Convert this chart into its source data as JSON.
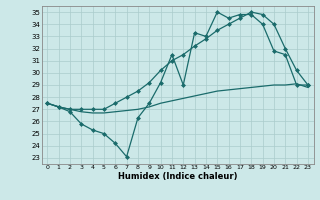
{
  "xlabel": "Humidex (Indice chaleur)",
  "ylabel": "",
  "xlim": [
    -0.5,
    23.5
  ],
  "ylim": [
    22.5,
    35.5
  ],
  "xticks": [
    0,
    1,
    2,
    3,
    4,
    5,
    6,
    7,
    8,
    9,
    10,
    11,
    12,
    13,
    14,
    15,
    16,
    17,
    18,
    19,
    20,
    21,
    22,
    23
  ],
  "yticks": [
    23,
    24,
    25,
    26,
    27,
    28,
    29,
    30,
    31,
    32,
    33,
    34,
    35
  ],
  "background_color": "#cce8e8",
  "grid_color": "#aacccc",
  "line_color": "#1a6b6b",
  "line1_x": [
    0,
    1,
    2,
    3,
    4,
    5,
    6,
    7,
    8,
    9,
    10,
    11,
    12,
    13,
    14,
    15,
    16,
    17,
    18,
    19,
    20,
    21,
    22,
    23
  ],
  "line1_y": [
    27.5,
    27.2,
    26.8,
    25.8,
    25.3,
    25.0,
    24.2,
    23.1,
    26.3,
    27.5,
    29.2,
    31.5,
    29.0,
    33.3,
    33.0,
    35.0,
    34.5,
    34.8,
    34.8,
    34.0,
    31.8,
    31.5,
    29.0,
    29.0
  ],
  "line2_x": [
    0,
    1,
    2,
    3,
    4,
    5,
    6,
    7,
    8,
    9,
    10,
    11,
    12,
    13,
    14,
    15,
    16,
    17,
    18,
    19,
    20,
    21,
    22,
    23
  ],
  "line2_y": [
    27.5,
    27.2,
    27.0,
    27.0,
    27.0,
    27.0,
    27.5,
    28.0,
    28.5,
    29.2,
    30.2,
    31.0,
    31.5,
    32.2,
    32.8,
    33.5,
    34.0,
    34.5,
    35.0,
    34.8,
    34.0,
    32.0,
    30.2,
    29.0
  ],
  "line3_x": [
    0,
    1,
    2,
    3,
    4,
    5,
    6,
    7,
    8,
    9,
    10,
    11,
    12,
    13,
    14,
    15,
    16,
    17,
    18,
    19,
    20,
    21,
    22,
    23
  ],
  "line3_y": [
    27.5,
    27.2,
    27.0,
    26.8,
    26.7,
    26.7,
    26.8,
    26.9,
    27.0,
    27.2,
    27.5,
    27.7,
    27.9,
    28.1,
    28.3,
    28.5,
    28.6,
    28.7,
    28.8,
    28.9,
    29.0,
    29.0,
    29.1,
    28.8
  ],
  "line1_marker": "D",
  "line2_marker": "D",
  "markersize": 2.0,
  "linewidth": 0.9
}
